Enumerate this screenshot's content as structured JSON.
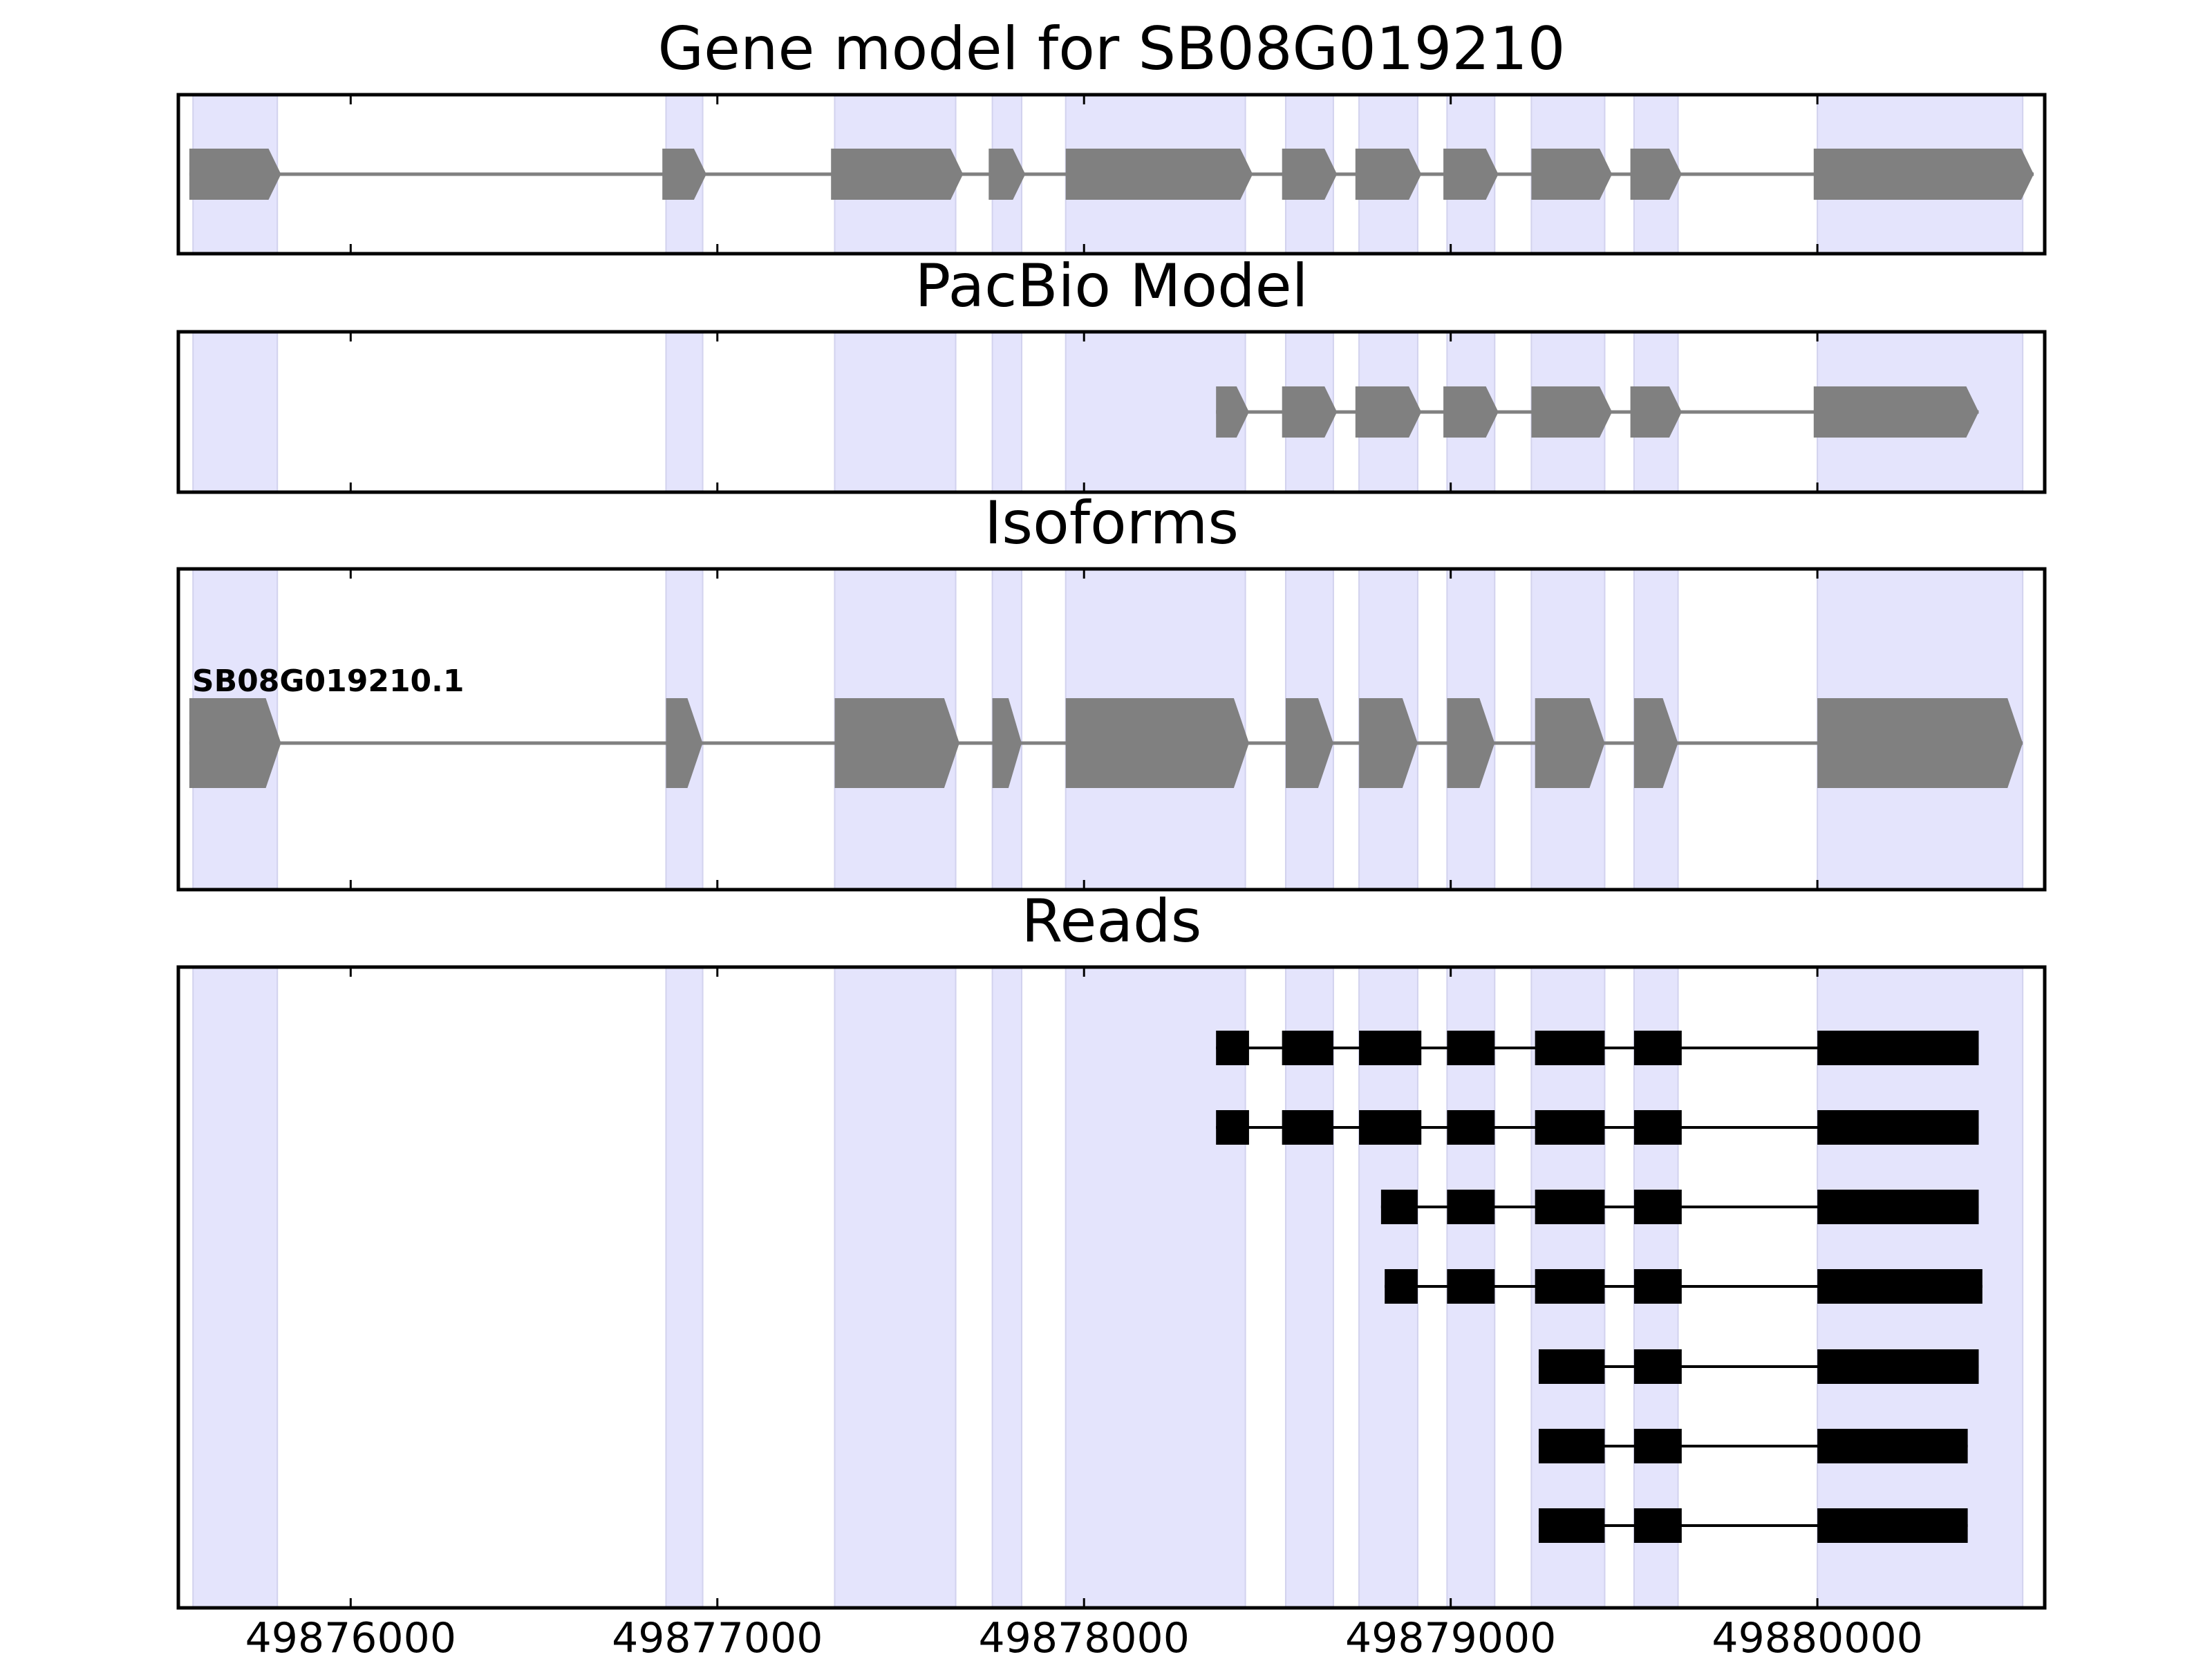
{
  "chart_data": {
    "type": "gene-track",
    "x_range": [
      49875530,
      49880620
    ],
    "xticks": [
      49876000,
      49877000,
      49878000,
      49879000,
      49880000
    ],
    "xtick_labels": [
      "49876000",
      "49877000",
      "49878000",
      "49879000",
      "49880000"
    ],
    "highlight_color": "#e4e4fc",
    "highlight_regions": [
      [
        49875570,
        49875800
      ],
      [
        49876860,
        49876960
      ],
      [
        49877320,
        49877650
      ],
      [
        49877750,
        49877830
      ],
      [
        49877950,
        49878440
      ],
      [
        49878550,
        49878680
      ],
      [
        49878750,
        49878910
      ],
      [
        49878990,
        49879120
      ],
      [
        49879220,
        49879420
      ],
      [
        49879500,
        49879620
      ],
      [
        49880000,
        49880560
      ]
    ],
    "panels": [
      {
        "title": "Gene model for SB08G019210",
        "color": "#808080",
        "models": [
          {
            "label": "",
            "exons": [
              [
                49875560,
                49875810
              ],
              [
                49876850,
                49876970
              ],
              [
                49877310,
                49877670
              ],
              [
                49877740,
                49877840
              ],
              [
                49877950,
                49878460
              ],
              [
                49878540,
                49878690
              ],
              [
                49878740,
                49878920
              ],
              [
                49878980,
                49879130
              ],
              [
                49879220,
                49879440
              ],
              [
                49879490,
                49879630
              ],
              [
                49879990,
                49880590
              ]
            ]
          }
        ]
      },
      {
        "title": "PacBio Model",
        "color": "#808080",
        "models": [
          {
            "label": "",
            "exons": [
              [
                49878360,
                49878450
              ],
              [
                49878540,
                49878690
              ],
              [
                49878740,
                49878920
              ],
              [
                49878980,
                49879130
              ],
              [
                49879220,
                49879440
              ],
              [
                49879490,
                49879630
              ],
              [
                49879990,
                49880440
              ]
            ]
          }
        ]
      },
      {
        "title": "Isoforms",
        "color": "#808080",
        "models": [
          {
            "label": "SB08G019210.1",
            "exons": [
              [
                49875560,
                49875810
              ],
              [
                49876860,
                49876960
              ],
              [
                49877320,
                49877660
              ],
              [
                49877750,
                49877830
              ],
              [
                49877950,
                49878450
              ],
              [
                49878550,
                49878680
              ],
              [
                49878750,
                49878910
              ],
              [
                49878990,
                49879120
              ],
              [
                49879230,
                49879420
              ],
              [
                49879500,
                49879620
              ],
              [
                49880000,
                49880560
              ]
            ]
          }
        ]
      },
      {
        "title": "Reads",
        "color": "#000000",
        "reads": [
          [
            [
              49878360,
              49878450
            ],
            [
              49878540,
              49878680
            ],
            [
              49878750,
              49878920
            ],
            [
              49878990,
              49879120
            ],
            [
              49879230,
              49879420
            ],
            [
              49879500,
              49879630
            ],
            [
              49880000,
              49880440
            ]
          ],
          [
            [
              49878360,
              49878450
            ],
            [
              49878540,
              49878680
            ],
            [
              49878750,
              49878920
            ],
            [
              49878990,
              49879120
            ],
            [
              49879230,
              49879420
            ],
            [
              49879500,
              49879630
            ],
            [
              49880000,
              49880440
            ]
          ],
          [
            [
              49878810,
              49878910
            ],
            [
              49878990,
              49879120
            ],
            [
              49879230,
              49879420
            ],
            [
              49879500,
              49879630
            ],
            [
              49880000,
              49880440
            ]
          ],
          [
            [
              49878820,
              49878910
            ],
            [
              49878990,
              49879120
            ],
            [
              49879230,
              49879420
            ],
            [
              49879500,
              49879630
            ],
            [
              49880000,
              49880450
            ]
          ],
          [
            [
              49879240,
              49879420
            ],
            [
              49879500,
              49879630
            ],
            [
              49880000,
              49880440
            ]
          ],
          [
            [
              49879240,
              49879420
            ],
            [
              49879500,
              49879630
            ],
            [
              49880000,
              49880410
            ]
          ],
          [
            [
              49879240,
              49879420
            ],
            [
              49879500,
              49879630
            ],
            [
              49880000,
              49880410
            ]
          ]
        ]
      }
    ]
  }
}
